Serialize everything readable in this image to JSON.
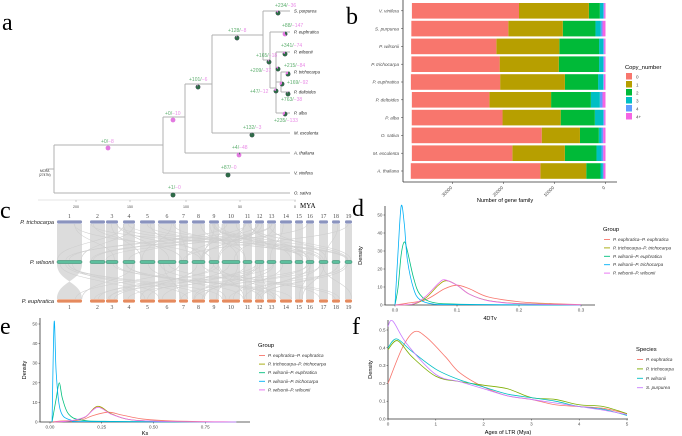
{
  "panel_labels": {
    "a": "a",
    "b": "b",
    "c": "c",
    "d": "d",
    "e": "e",
    "f": "f"
  },
  "colors": {
    "gain": "#5DAE6E",
    "loss": "#E98BE6",
    "pie_gain": "#2E6A47",
    "pie_loss": "#E27AE0",
    "branch": "#b0b0b0"
  },
  "tree": {
    "root_label": [
      "MCRA",
      "(2747N)"
    ],
    "tips": [
      "S. purpurea",
      "P. euphratica",
      "P. wilsonii",
      "P. trichocarpa",
      "P. deltoides",
      "P. alba",
      "M. esculenta",
      "A. thaliana",
      "V. vinifera",
      "O. sativa"
    ],
    "branches": [
      {
        "gain": "+234/",
        "loss": "−36"
      },
      {
        "gain": "+88/",
        "loss": "−147"
      },
      {
        "gain": "+341/",
        "loss": "−74"
      },
      {
        "gain": "+165/",
        "loss": "−18"
      },
      {
        "gain": "+209/",
        "loss": "−37"
      },
      {
        "gain": "+215/",
        "loss": "−84"
      },
      {
        "gain": "+169/",
        "loss": "−92"
      },
      {
        "gain": "+47/",
        "loss": "−12"
      },
      {
        "gain": "+763/",
        "loss": "−38"
      },
      {
        "gain": "+235/",
        "loss": "−133"
      },
      {
        "gain": "+128/",
        "loss": "−8"
      },
      {
        "gain": "+101/",
        "loss": "−6"
      },
      {
        "gain": "+0/",
        "loss": "−10"
      },
      {
        "gain": "+0/",
        "loss": "−8"
      },
      {
        "gain": "+132/",
        "loss": "−3"
      },
      {
        "gain": "+4/",
        "loss": "−48"
      },
      {
        "gain": "+87/",
        "loss": "−0"
      },
      {
        "gain": "+1/",
        "loss": "−0"
      }
    ],
    "axis": {
      "ticks": [
        "200",
        "150",
        "100",
        "50",
        "0"
      ],
      "unit": "MYA"
    }
  },
  "synteny": {
    "genomes": [
      {
        "name": "P. trichocarpa",
        "color": "#8A93BE",
        "label_color": "#7B86C4"
      },
      {
        "name": "P. wilsonii",
        "color": "#5DBF9E",
        "label_color": "#4CC1A0"
      },
      {
        "name": "P. euphratica",
        "color": "#E58A5E",
        "label_color": "#EE7B3E"
      }
    ],
    "chromosomes": [
      "1",
      "2",
      "3",
      "4",
      "5",
      "6",
      "7",
      "8",
      "9",
      "10",
      "11",
      "12",
      "13",
      "14",
      "15",
      "16",
      "17",
      "18",
      "19"
    ]
  },
  "chart_data": [
    {
      "id": "b",
      "type": "bar",
      "orientation": "horizontal-stacked",
      "title": "",
      "xlabel": "Number of gene family",
      "ylabel": "",
      "xlim": [
        37500,
        0
      ],
      "xticks": [
        "30000",
        "20000",
        "10000",
        "0"
      ],
      "xtick_values": [
        30000,
        20000,
        10000,
        0
      ],
      "legend_title": "Copy_number",
      "legend_position": "right",
      "categories": [
        "V. vinifera",
        "S. purpurea",
        "P. wilsonii",
        "P. trichocarpa",
        "P. euphratica",
        "P. deltoides",
        "P. alba",
        "O. sativa",
        "M. esculenta",
        "A. thaliana"
      ],
      "series": [
        {
          "name": "0",
          "color": "#F8766D",
          "values": [
            21000,
            19000,
            16700,
            17300,
            17500,
            15200,
            17800,
            25500,
            19700,
            25400
          ]
        },
        {
          "name": "1",
          "color": "#B79F00",
          "values": [
            13700,
            10700,
            12350,
            11600,
            12700,
            12100,
            11400,
            7500,
            10300,
            9000
          ]
        },
        {
          "name": "2",
          "color": "#00BA38",
          "values": [
            2150,
            6400,
            7800,
            7900,
            6500,
            7800,
            6700,
            3700,
            6200,
            2800
          ]
        },
        {
          "name": "3",
          "color": "#00BFC4",
          "values": [
            650,
            1050,
            800,
            800,
            1000,
            1760,
            1630,
            520,
            980,
            460
          ]
        },
        {
          "name": "4",
          "color": "#619CFF",
          "values": [
            200,
            330,
            200,
            200,
            130,
            520,
            200,
            330,
            330,
            130
          ]
        },
        {
          "name": "4+",
          "color": "#F564E3",
          "values": [
            260,
            590,
            260,
            260,
            330,
            590,
            260,
            460,
            460,
            390
          ]
        }
      ]
    },
    {
      "id": "d",
      "type": "line",
      "xlabel": "4DTv",
      "ylabel": "Density",
      "xlim": [
        0,
        0.32
      ],
      "ylim": [
        0,
        56
      ],
      "xticks": [
        "0.0",
        "0.1",
        "0.2",
        "0.3"
      ],
      "xtick_values": [
        0,
        0.1,
        0.2,
        0.3
      ],
      "yticks": [
        "0",
        "10",
        "20",
        "30",
        "40",
        "50"
      ],
      "ytick_values": [
        0,
        10,
        20,
        30,
        40,
        50
      ],
      "legend_title": "Group",
      "legend_position": "right",
      "series": [
        {
          "name": "P. euphratica–P. euphratica",
          "color": "#F8766D",
          "x": [
            0,
            0.02,
            0.05,
            0.08,
            0.1,
            0.12,
            0.15,
            0.2,
            0.25,
            0.3
          ],
          "y": [
            0,
            1,
            3,
            9,
            11,
            9,
            4.5,
            1.8,
            0.8,
            0.2
          ]
        },
        {
          "name": "P. trichocarpa–P. trichocarpa",
          "color": "#A3A500",
          "x": [
            0,
            0.03,
            0.05,
            0.07,
            0.083,
            0.1,
            0.12,
            0.15,
            0.2,
            0.3
          ],
          "y": [
            0,
            0.5,
            4,
            11,
            13.5,
            11,
            6,
            2.5,
            0.8,
            0.1
          ]
        },
        {
          "name": "P. wilsonii–P. euphratica",
          "color": "#00BF7D",
          "x": [
            0,
            0.005,
            0.01,
            0.015,
            0.02,
            0.03,
            0.04,
            0.06,
            0.1,
            0.2,
            0.3
          ],
          "y": [
            0,
            10,
            28,
            35,
            30,
            15,
            6,
            1.5,
            0.5,
            0.1,
            0
          ]
        },
        {
          "name": "P. wilsonii–P. trichocarpa",
          "color": "#00B0F6",
          "x": [
            0,
            0.005,
            0.01,
            0.015,
            0.02,
            0.03,
            0.04,
            0.06,
            0.1,
            0.3
          ],
          "y": [
            0,
            30,
            55,
            45,
            25,
            9,
            3,
            0.6,
            0.2,
            0
          ]
        },
        {
          "name": "P. wilsonii–P. wilsonii",
          "color": "#E76BF3",
          "x": [
            0,
            0.03,
            0.05,
            0.07,
            0.08,
            0.1,
            0.12,
            0.15,
            0.2,
            0.3
          ],
          "y": [
            0,
            0.6,
            5,
            12,
            14,
            11,
            6,
            2.4,
            0.7,
            0.1
          ]
        }
      ]
    },
    {
      "id": "e",
      "type": "line",
      "xlabel": "Ks",
      "ylabel": "Density",
      "xlim": [
        0,
        0.92
      ],
      "ylim": [
        0,
        52
      ],
      "xticks": [
        "0.00",
        "0.25",
        "0.50",
        "0.75"
      ],
      "xtick_values": [
        0,
        0.25,
        0.5,
        0.75
      ],
      "yticks": [
        "0",
        "10",
        "20",
        "30",
        "40",
        "50"
      ],
      "ytick_values": [
        0,
        10,
        20,
        30,
        40,
        50
      ],
      "legend_title": "Group",
      "legend_position": "right",
      "series": [
        {
          "name": "P. euphratica–P. euphratica",
          "color": "#F8766D",
          "x": [
            0.01,
            0.05,
            0.15,
            0.2,
            0.28,
            0.35,
            0.45,
            0.6,
            0.9
          ],
          "y": [
            0,
            0.5,
            1,
            3,
            5,
            3.5,
            1.5,
            0.5,
            0
          ]
        },
        {
          "name": "P. trichocarpa–P. trichocarpa",
          "color": "#A3A500",
          "x": [
            0.02,
            0.1,
            0.17,
            0.23,
            0.3,
            0.4,
            0.6,
            0.9
          ],
          "y": [
            0,
            0.5,
            2.5,
            8,
            4,
            1,
            0.2,
            0
          ]
        },
        {
          "name": "P. wilsonii–P. euphratica",
          "color": "#00BF7D",
          "x": [
            0.01,
            0.03,
            0.045,
            0.06,
            0.09,
            0.15,
            0.3,
            0.9
          ],
          "y": [
            0,
            12,
            20,
            12,
            4,
            1,
            0.3,
            0
          ]
        },
        {
          "name": "P. wilsonii–P. trichocarpa",
          "color": "#00B0F6",
          "x": [
            0.01,
            0.02,
            0.03,
            0.05,
            0.1,
            0.2,
            0.9
          ],
          "y": [
            0,
            51,
            25,
            6,
            1,
            0.2,
            0
          ]
        },
        {
          "name": "P. wilsonii–P. wilsonii",
          "color": "#E76BF3",
          "x": [
            0.02,
            0.1,
            0.17,
            0.23,
            0.3,
            0.4,
            0.6,
            0.9
          ],
          "y": [
            0,
            0.6,
            2.6,
            7.5,
            3.8,
            1,
            0.2,
            0
          ]
        }
      ]
    },
    {
      "id": "f",
      "type": "line",
      "xlabel": "Ages of LTR (Mya)",
      "ylabel": "Density",
      "xlim": [
        0,
        5
      ],
      "ylim": [
        0,
        0.56
      ],
      "xticks": [
        "0",
        "1",
        "2",
        "3",
        "4",
        "5"
      ],
      "xtick_values": [
        0,
        1,
        2,
        3,
        4,
        5
      ],
      "yticks": [
        "0.0",
        "0.1",
        "0.2",
        "0.3",
        "0.4",
        "0.5"
      ],
      "ytick_values": [
        0,
        0.1,
        0.2,
        0.3,
        0.4,
        0.5
      ],
      "legend_title": "Species",
      "legend_position": "right",
      "series": [
        {
          "name": "P. euphratica",
          "color": "#F8766D",
          "x": [
            0,
            0.3,
            0.55,
            0.8,
            1.2,
            1.5,
            2,
            2.5,
            3,
            3.5,
            4,
            4.5,
            5
          ],
          "y": [
            0.2,
            0.4,
            0.49,
            0.46,
            0.35,
            0.26,
            0.18,
            0.13,
            0.11,
            0.08,
            0.07,
            0.06,
            0.03
          ]
        },
        {
          "name": "P. trichocarpa",
          "color": "#7CAE00",
          "x": [
            0,
            0.2,
            0.5,
            1,
            1.5,
            2,
            2.5,
            3,
            3.5,
            4,
            4.5,
            5
          ],
          "y": [
            0.39,
            0.44,
            0.35,
            0.24,
            0.21,
            0.19,
            0.17,
            0.12,
            0.11,
            0.08,
            0.07,
            0.03
          ]
        },
        {
          "name": "P. wilsonii",
          "color": "#00BFC4",
          "x": [
            0,
            0.18,
            0.5,
            1,
            1.5,
            2,
            2.5,
            3,
            3.5,
            4,
            4.5,
            5
          ],
          "y": [
            0.4,
            0.45,
            0.38,
            0.28,
            0.22,
            0.18,
            0.14,
            0.12,
            0.1,
            0.07,
            0.055,
            0.02
          ]
        },
        {
          "name": "S. purpurea",
          "color": "#C77CFF",
          "x": [
            0,
            0.1,
            0.4,
            1,
            1.5,
            2,
            2.5,
            3,
            3.5,
            4,
            4.5,
            5
          ],
          "y": [
            0.52,
            0.55,
            0.42,
            0.25,
            0.21,
            0.17,
            0.13,
            0.11,
            0.09,
            0.07,
            0.05,
            0.025
          ]
        }
      ]
    }
  ]
}
